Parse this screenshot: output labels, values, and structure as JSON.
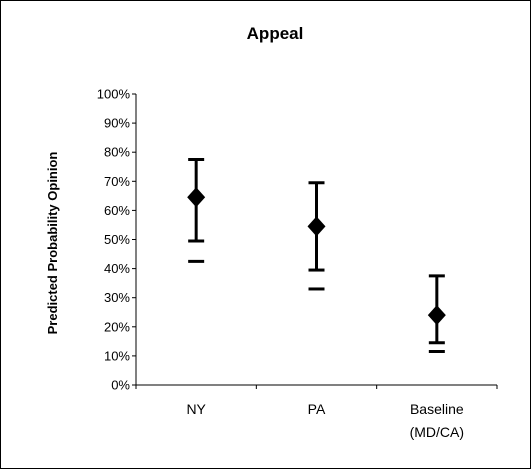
{
  "chart_data": {
    "type": "scatter",
    "title": "Appeal",
    "xlabel": "",
    "ylabel": "Predicted Probability Opinion",
    "ylim": [
      0,
      100
    ],
    "y_tick_step": 10,
    "y_tick_suffix": "%",
    "grid": false,
    "legend": "none",
    "categories": [
      {
        "lines": [
          "NY"
        ]
      },
      {
        "lines": [
          "PA"
        ]
      },
      {
        "lines": [
          "Baseline",
          "(MD/CA)"
        ]
      }
    ],
    "series": [
      {
        "marker": "diamond",
        "color": "#000000",
        "points": [
          {
            "estimate": 64.5,
            "upper": 77.5,
            "lower": 49.5,
            "outer_lower": 42.5
          },
          {
            "estimate": 54.5,
            "upper": 69.5,
            "lower": 39.5,
            "outer_lower": 33
          },
          {
            "estimate": 24,
            "upper": 37.5,
            "lower": 14.5,
            "outer_lower": 11.5
          }
        ]
      }
    ]
  }
}
